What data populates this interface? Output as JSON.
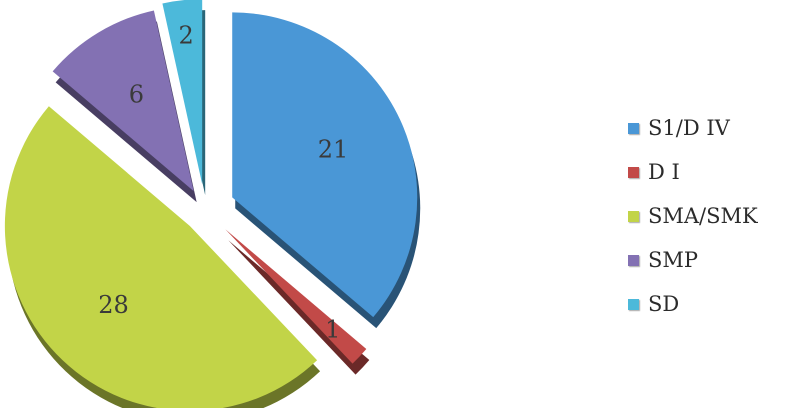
{
  "chart_data": {
    "type": "pie",
    "style": "exploded 3d",
    "title": "",
    "categories": [
      "S1/D IV",
      "D I",
      "SMA/SMK",
      "SMP",
      "SD"
    ],
    "values": [
      21,
      1,
      28,
      6,
      2
    ],
    "data_labels": [
      "21",
      "1",
      "28",
      "6",
      "2"
    ],
    "colors": [
      "#4a97d6",
      "#c24a48",
      "#c2d448",
      "#8371b3",
      "#4cb9da"
    ],
    "legend_position": "right"
  }
}
